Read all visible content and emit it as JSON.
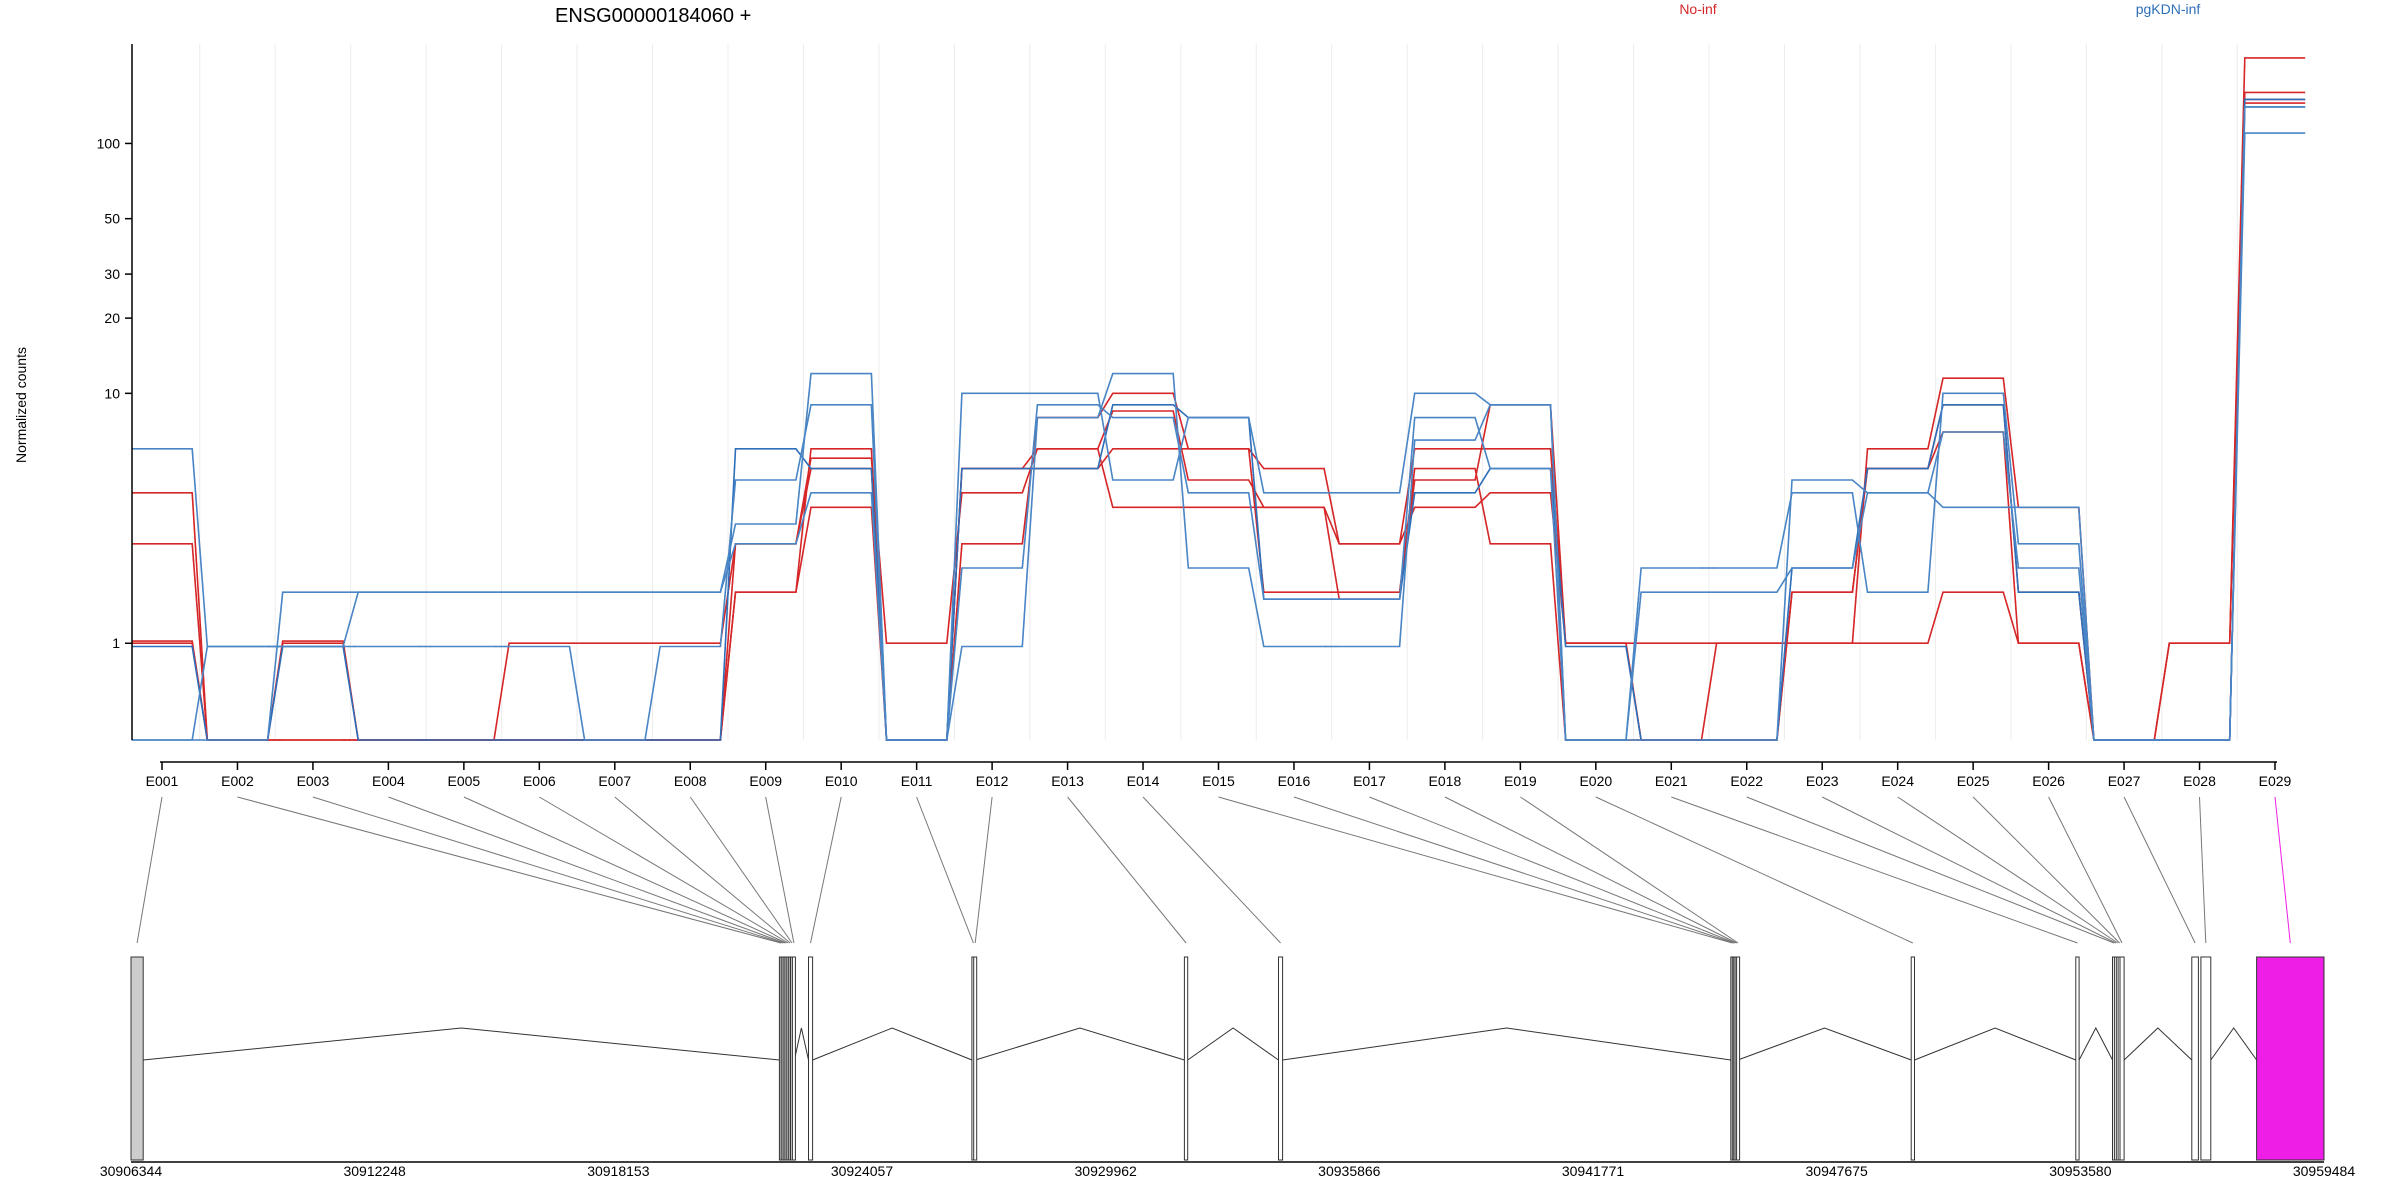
{
  "chart_data": {
    "type": "line",
    "title": "ENSG00000184060 +",
    "ylabel": "Normalized counts",
    "xlabel": "",
    "yscale": "log",
    "yticks": [
      1,
      10,
      20,
      30,
      50,
      100
    ],
    "ylim": [
      0.41,
      250
    ],
    "grid": "vertical only",
    "legend_placement": "top-right",
    "categories": [
      "E001",
      "E002",
      "E003",
      "E004",
      "E005",
      "E006",
      "E007",
      "E008",
      "E009",
      "E010",
      "E011",
      "E012",
      "E013",
      "E014",
      "E015",
      "E016",
      "E017",
      "E018",
      "E019",
      "E020",
      "E021",
      "E022",
      "E023",
      "E024",
      "E025",
      "E026",
      "E027",
      "E028",
      "E029"
    ],
    "series": [
      {
        "name": "No-inf",
        "color": "#d62728",
        "values": [
          1.02,
          0.41,
          1.02,
          0.41,
          0.41,
          1.0,
          1.0,
          1.0,
          2.5,
          5.5,
          1.0,
          4.0,
          6.0,
          8.5,
          4.5,
          3.5,
          1.5,
          4.5,
          9.0,
          1.0,
          1.0,
          1.0,
          1.0,
          6.0,
          11.5,
          3.5,
          0.41,
          1.0,
          220
        ]
      },
      {
        "name": "No-inf",
        "color": "#d62728",
        "values": [
          2.5,
          0.41,
          1.0,
          0.41,
          0.41,
          0.41,
          0.41,
          0.41,
          1.6,
          3.5,
          0.41,
          2.5,
          8.0,
          10.0,
          6.0,
          5.0,
          2.5,
          6.0,
          6.0,
          1.0,
          0.41,
          0.41,
          1.6,
          5.0,
          9.0,
          1.6,
          0.41,
          0.41,
          150
        ]
      },
      {
        "name": "No-inf",
        "color": "#d62728",
        "values": [
          4.0,
          0.41,
          0.41,
          0.41,
          0.41,
          0.41,
          0.41,
          0.41,
          2.5,
          5.0,
          0.41,
          5.0,
          5.0,
          6.0,
          6.0,
          1.6,
          1.6,
          5.0,
          2.5,
          0.41,
          0.41,
          1.0,
          1.0,
          1.0,
          1.6,
          1.0,
          0.41,
          0.41,
          160
        ]
      },
      {
        "name": "No-inf",
        "color": "#d62728",
        "values": [
          1.0,
          0.41,
          0.41,
          0.41,
          0.41,
          0.41,
          0.41,
          0.41,
          1.6,
          6.0,
          0.41,
          5.0,
          6.0,
          3.5,
          3.5,
          3.5,
          2.5,
          3.5,
          4.0,
          1.0,
          0.41,
          0.41,
          1.6,
          5.0,
          7.0,
          1.0,
          0.41,
          1.0,
          145
        ]
      },
      {
        "name": "pgKDN-inf",
        "color": "#2e6fba",
        "values": [
          0.97,
          0.41,
          0.97,
          0.41,
          0.41,
          0.41,
          0.41,
          0.41,
          6.0,
          5.0,
          0.41,
          5.0,
          5.0,
          9.0,
          8.0,
          1.5,
          1.5,
          4.0,
          5.0,
          0.97,
          0.41,
          0.41,
          2.0,
          5.0,
          9.0,
          1.6,
          0.41,
          0.41,
          150
        ]
      }
    ],
    "series_extra": [
      {
        "name": "pgKDN-inf",
        "color": "#4a86c5",
        "values": [
          6.0,
          0.97,
          0.97,
          0.97,
          0.97,
          0.97,
          0.41,
          0.97,
          4.5,
          9.0,
          0.41,
          0.97,
          8.0,
          12.0,
          2.0,
          0.97,
          0.97,
          6.5,
          9.0,
          0.41,
          2.0,
          2.0,
          4.0,
          1.6,
          10.0,
          2.5,
          0.41,
          0.41,
          140
        ]
      },
      {
        "name": "pgKDN-inf",
        "color": "#4a86c5",
        "values": [
          0.41,
          0.41,
          1.6,
          1.6,
          1.6,
          1.6,
          1.6,
          1.6,
          3.0,
          12.0,
          0.41,
          10.0,
          10.0,
          4.5,
          8.0,
          4.0,
          4.0,
          10.0,
          9.0,
          0.41,
          0.41,
          0.41,
          4.5,
          4.0,
          3.5,
          3.5,
          0.41,
          0.41,
          110
        ]
      },
      {
        "name": "pgKDN-inf",
        "color": "#4a86c5",
        "values": [
          0.41,
          0.97,
          0.97,
          1.6,
          1.6,
          1.6,
          1.6,
          1.6,
          2.5,
          4.0,
          0.41,
          2.0,
          9.0,
          8.0,
          4.0,
          1.5,
          1.5,
          8.0,
          5.0,
          0.41,
          1.6,
          1.6,
          2.0,
          4.0,
          7.0,
          2.0,
          0.41,
          0.41,
          140
        ]
      }
    ],
    "legend": [
      {
        "label": "No-inf",
        "color": "#d62728"
      },
      {
        "label": "pgKDN-inf",
        "color": "#2e6fba"
      }
    ],
    "gene_model": {
      "axis_labels": [
        "30906344",
        "30912248",
        "30918153",
        "30924057",
        "30929962",
        "30935866",
        "30941771",
        "30947675",
        "30953580",
        "30959484"
      ],
      "axis_values": [
        30906344,
        30912248,
        30918153,
        30924057,
        30929962,
        30935866,
        30941771,
        30947675,
        30953580,
        30959484
      ],
      "exons": [
        {
          "id": "E001",
          "start": 30906344,
          "end": 30906640,
          "fill": "#cccccc"
        },
        {
          "id": "E002",
          "start": 30922055,
          "end": 30922095,
          "fill": "#cccccc"
        },
        {
          "id": "E003",
          "start": 30922100,
          "end": 30922140,
          "fill": "#cccccc"
        },
        {
          "id": "E004",
          "start": 30922145,
          "end": 30922185,
          "fill": "#cccccc"
        },
        {
          "id": "E005",
          "start": 30922190,
          "end": 30922230,
          "fill": "#cccccc"
        },
        {
          "id": "E006",
          "start": 30922235,
          "end": 30922275,
          "fill": "#cccccc"
        },
        {
          "id": "E007",
          "start": 30922280,
          "end": 30922320,
          "fill": "#cccccc"
        },
        {
          "id": "E008",
          "start": 30922325,
          "end": 30922365,
          "fill": "#cccccc"
        },
        {
          "id": "E009",
          "start": 30922370,
          "end": 30922420,
          "fill": "#ffffff"
        },
        {
          "id": "E010",
          "start": 30922760,
          "end": 30922860,
          "fill": "#ffffff"
        },
        {
          "id": "E011",
          "start": 30926720,
          "end": 30926760,
          "fill": "#ffffff"
        },
        {
          "id": "E012",
          "start": 30926765,
          "end": 30926805,
          "fill": "#ffffff"
        },
        {
          "id": "E013",
          "start": 30931870,
          "end": 30931950,
          "fill": "#ffffff"
        },
        {
          "id": "E014",
          "start": 30934150,
          "end": 30934250,
          "fill": "#ffffff"
        },
        {
          "id": "E015",
          "start": 30945110,
          "end": 30945140,
          "fill": "#ffffff"
        },
        {
          "id": "E016",
          "start": 30945145,
          "end": 30945175,
          "fill": "#ffffff"
        },
        {
          "id": "E017",
          "start": 30945180,
          "end": 30945210,
          "fill": "#ffffff"
        },
        {
          "id": "E018",
          "start": 30945215,
          "end": 30945245,
          "fill": "#ffffff"
        },
        {
          "id": "E019",
          "start": 30945250,
          "end": 30945280,
          "fill": "#ffffff"
        },
        {
          "id": "E020",
          "start": 30949480,
          "end": 30949560,
          "fill": "#ffffff"
        },
        {
          "id": "E021",
          "start": 30953470,
          "end": 30953550,
          "fill": "#ffffff"
        },
        {
          "id": "E022",
          "start": 30954360,
          "end": 30954400,
          "fill": "#ffffff"
        },
        {
          "id": "E023",
          "start": 30954405,
          "end": 30954445,
          "fill": "#ffffff"
        },
        {
          "id": "E024",
          "start": 30954450,
          "end": 30954490,
          "fill": "#ffffff"
        },
        {
          "id": "E025",
          "start": 30954495,
          "end": 30954535,
          "fill": "#ffffff"
        },
        {
          "id": "E026",
          "start": 30954540,
          "end": 30954640,
          "fill": "#ffffff"
        },
        {
          "id": "E027",
          "start": 30956280,
          "end": 30956440,
          "fill": "#ffffff"
        },
        {
          "id": "E028",
          "start": 30956500,
          "end": 30956740,
          "fill": "#ffffff"
        },
        {
          "id": "E029",
          "start": 30957850,
          "end": 30959484,
          "fill": "#ee1ee6"
        }
      ],
      "highlight_color": "#ee1ee6"
    }
  }
}
